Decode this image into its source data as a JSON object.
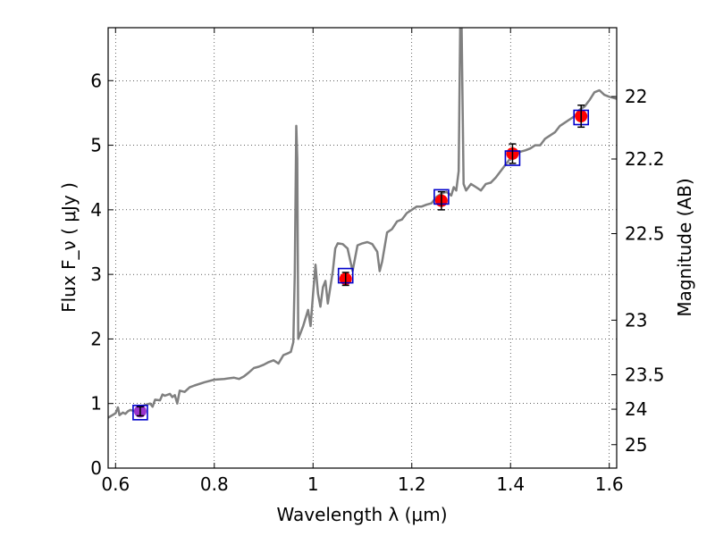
{
  "chart_data": {
    "type": "scatter",
    "xlabel": "Wavelength  λ (μm)",
    "ylabel": "Flux  F_ν  ( μJy )",
    "ylabel_right": "Magnitude (AB)",
    "xlim": [
      0.585,
      1.615
    ],
    "ylim": [
      0,
      6.82
    ],
    "grid": true,
    "x_ticks": [
      {
        "v": 0.6,
        "label": "0.6"
      },
      {
        "v": 0.8,
        "label": "0.8"
      },
      {
        "v": 1.0,
        "label": "1"
      },
      {
        "v": 1.2,
        "label": "1.2"
      },
      {
        "v": 1.4,
        "label": "1.4"
      },
      {
        "v": 1.6,
        "label": "1.6"
      }
    ],
    "y_ticks": [
      {
        "v": 0,
        "label": "0"
      },
      {
        "v": 1,
        "label": "1"
      },
      {
        "v": 2,
        "label": "2"
      },
      {
        "v": 3,
        "label": "3"
      },
      {
        "v": 4,
        "label": "4"
      },
      {
        "v": 5,
        "label": "5"
      },
      {
        "v": 6,
        "label": "6"
      }
    ],
    "mag_ticks": [
      {
        "v": 22,
        "label": "22"
      },
      {
        "v": 22.2,
        "label": "22.2"
      },
      {
        "v": 22.5,
        "label": "22.5"
      },
      {
        "v": 23,
        "label": "23"
      },
      {
        "v": 23.5,
        "label": "23.5"
      },
      {
        "v": 24,
        "label": "24"
      },
      {
        "v": 25,
        "label": "25"
      }
    ],
    "spectrum": {
      "color": "#808080",
      "points": [
        [
          0.585,
          0.78
        ],
        [
          0.6,
          0.85
        ],
        [
          0.605,
          0.94
        ],
        [
          0.608,
          0.82
        ],
        [
          0.615,
          0.86
        ],
        [
          0.62,
          0.84
        ],
        [
          0.625,
          0.88
        ],
        [
          0.63,
          0.9
        ],
        [
          0.64,
          0.88
        ],
        [
          0.65,
          0.94
        ],
        [
          0.66,
          0.98
        ],
        [
          0.67,
          1.0
        ],
        [
          0.675,
          0.95
        ],
        [
          0.68,
          1.06
        ],
        [
          0.69,
          1.05
        ],
        [
          0.695,
          1.14
        ],
        [
          0.7,
          1.12
        ],
        [
          0.71,
          1.15
        ],
        [
          0.715,
          1.1
        ],
        [
          0.72,
          1.13
        ],
        [
          0.725,
          1.0
        ],
        [
          0.73,
          1.2
        ],
        [
          0.74,
          1.18
        ],
        [
          0.75,
          1.25
        ],
        [
          0.76,
          1.28
        ],
        [
          0.78,
          1.33
        ],
        [
          0.8,
          1.37
        ],
        [
          0.82,
          1.38
        ],
        [
          0.84,
          1.4
        ],
        [
          0.85,
          1.38
        ],
        [
          0.86,
          1.42
        ],
        [
          0.87,
          1.48
        ],
        [
          0.88,
          1.55
        ],
        [
          0.89,
          1.57
        ],
        [
          0.9,
          1.6
        ],
        [
          0.91,
          1.64
        ],
        [
          0.92,
          1.67
        ],
        [
          0.93,
          1.62
        ],
        [
          0.94,
          1.75
        ],
        [
          0.95,
          1.78
        ],
        [
          0.955,
          1.8
        ],
        [
          0.96,
          1.95
        ],
        [
          0.963,
          3.0
        ],
        [
          0.966,
          5.3
        ],
        [
          0.968,
          4.8
        ],
        [
          0.97,
          2.0
        ],
        [
          0.98,
          2.2
        ],
        [
          0.99,
          2.45
        ],
        [
          0.995,
          2.2
        ],
        [
          1.0,
          2.7
        ],
        [
          1.005,
          3.15
        ],
        [
          1.01,
          2.7
        ],
        [
          1.015,
          2.5
        ],
        [
          1.02,
          2.8
        ],
        [
          1.025,
          2.9
        ],
        [
          1.03,
          2.55
        ],
        [
          1.04,
          3.05
        ],
        [
          1.045,
          3.4
        ],
        [
          1.05,
          3.48
        ],
        [
          1.06,
          3.47
        ],
        [
          1.07,
          3.4
        ],
        [
          1.08,
          3.05
        ],
        [
          1.09,
          3.45
        ],
        [
          1.1,
          3.48
        ],
        [
          1.11,
          3.5
        ],
        [
          1.12,
          3.47
        ],
        [
          1.13,
          3.35
        ],
        [
          1.135,
          3.05
        ],
        [
          1.14,
          3.2
        ],
        [
          1.15,
          3.65
        ],
        [
          1.16,
          3.7
        ],
        [
          1.17,
          3.82
        ],
        [
          1.18,
          3.85
        ],
        [
          1.19,
          3.95
        ],
        [
          1.2,
          4.0
        ],
        [
          1.21,
          4.05
        ],
        [
          1.22,
          4.05
        ],
        [
          1.23,
          4.08
        ],
        [
          1.24,
          4.1
        ],
        [
          1.25,
          4.2
        ],
        [
          1.26,
          4.25
        ],
        [
          1.27,
          4.28
        ],
        [
          1.28,
          4.22
        ],
        [
          1.285,
          4.35
        ],
        [
          1.29,
          4.3
        ],
        [
          1.295,
          4.6
        ],
        [
          1.298,
          6.82
        ],
        [
          1.301,
          6.82
        ],
        [
          1.305,
          4.4
        ],
        [
          1.31,
          4.3
        ],
        [
          1.32,
          4.4
        ],
        [
          1.33,
          4.35
        ],
        [
          1.34,
          4.3
        ],
        [
          1.35,
          4.4
        ],
        [
          1.36,
          4.42
        ],
        [
          1.37,
          4.5
        ],
        [
          1.38,
          4.6
        ],
        [
          1.39,
          4.7
        ],
        [
          1.4,
          4.8
        ],
        [
          1.41,
          4.85
        ],
        [
          1.42,
          4.9
        ],
        [
          1.43,
          4.92
        ],
        [
          1.44,
          4.95
        ],
        [
          1.45,
          5.0
        ],
        [
          1.46,
          5.0
        ],
        [
          1.47,
          5.1
        ],
        [
          1.48,
          5.15
        ],
        [
          1.49,
          5.2
        ],
        [
          1.5,
          5.3
        ],
        [
          1.51,
          5.35
        ],
        [
          1.52,
          5.4
        ],
        [
          1.53,
          5.45
        ],
        [
          1.54,
          5.55
        ],
        [
          1.55,
          5.6
        ],
        [
          1.56,
          5.7
        ],
        [
          1.57,
          5.82
        ],
        [
          1.58,
          5.85
        ],
        [
          1.59,
          5.78
        ],
        [
          1.6,
          5.75
        ],
        [
          1.615,
          5.72
        ]
      ]
    },
    "photometry": [
      {
        "x": 0.65,
        "y": 0.88,
        "err": 0.07,
        "color": "#9933cc"
      },
      {
        "x": 1.066,
        "y": 2.93,
        "err": 0.1,
        "color": "#ff0000"
      },
      {
        "x": 1.26,
        "y": 4.14,
        "err": 0.14,
        "color": "#ff0000"
      },
      {
        "x": 1.404,
        "y": 4.87,
        "err": 0.15,
        "color": "#ff0000"
      },
      {
        "x": 1.543,
        "y": 5.45,
        "err": 0.17,
        "color": "#ff0000"
      }
    ],
    "model_boxes": [
      {
        "x": 0.65,
        "y": 0.86
      },
      {
        "x": 1.066,
        "y": 2.98
      },
      {
        "x": 1.26,
        "y": 4.2
      },
      {
        "x": 1.404,
        "y": 4.8
      },
      {
        "x": 1.543,
        "y": 5.43
      }
    ],
    "box_color": "#0000cc"
  }
}
